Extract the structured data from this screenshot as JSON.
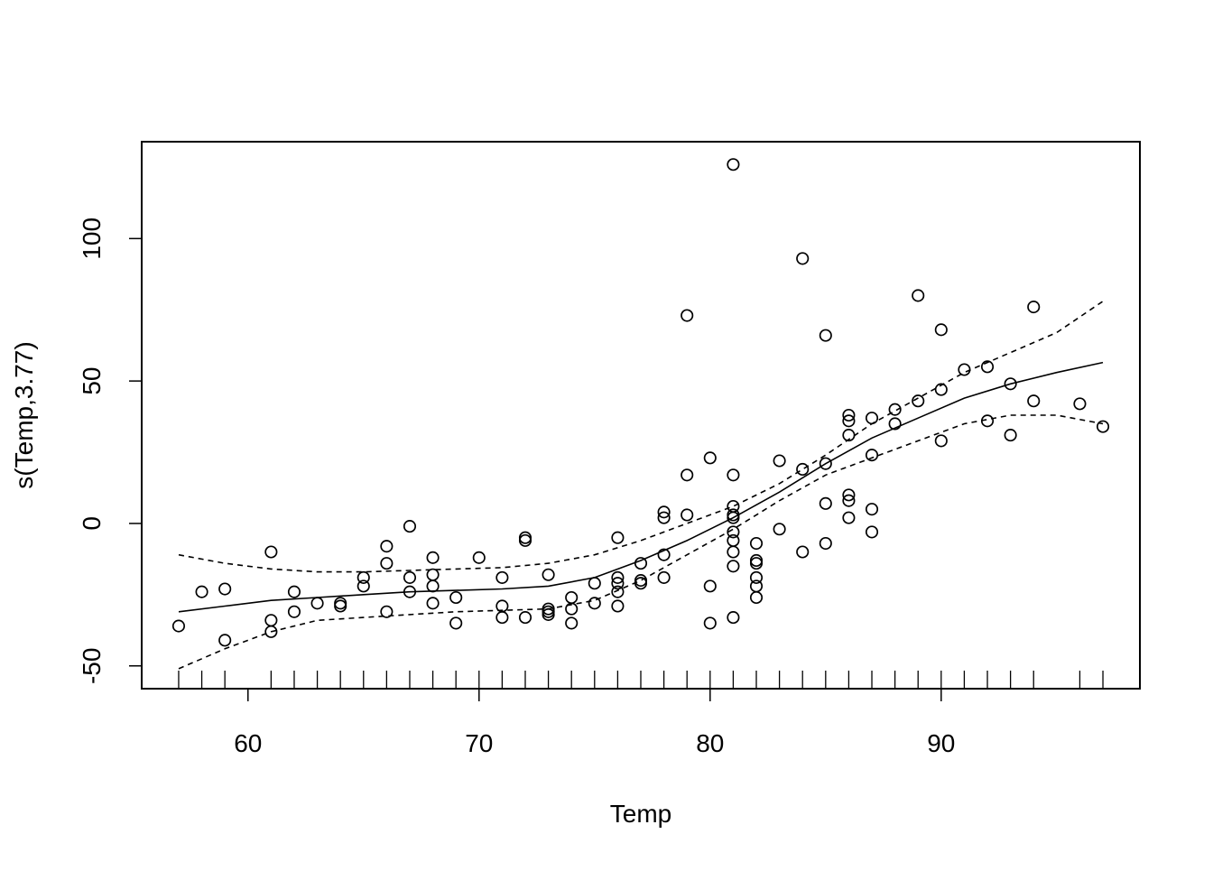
{
  "chart_data": {
    "type": "scatter",
    "title": "",
    "xlabel": "Temp",
    "ylabel": "s(Temp,3.77)",
    "xlim": [
      55.4,
      98.6
    ],
    "ylim": [
      -58.0,
      134.0
    ],
    "x_ticks": [
      60,
      70,
      80,
      90
    ],
    "y_ticks": [
      -50,
      0,
      50,
      100
    ],
    "x_tick_labels": [
      "60",
      "70",
      "80",
      "90"
    ],
    "y_tick_labels": [
      "-50",
      "0",
      "50",
      "100"
    ],
    "grid": false,
    "legend": "none",
    "rug_x": [
      57,
      58,
      59,
      61,
      62,
      63,
      64,
      65,
      66,
      67,
      68,
      69,
      70,
      71,
      72,
      73,
      74,
      75,
      76,
      77,
      78,
      79,
      80,
      81,
      82,
      83,
      84,
      85,
      86,
      87,
      88,
      89,
      90,
      91,
      92,
      93,
      94,
      96,
      97
    ],
    "points": [
      [
        57,
        -36
      ],
      [
        58,
        -24
      ],
      [
        59,
        -23
      ],
      [
        59,
        -41
      ],
      [
        61,
        -10
      ],
      [
        61,
        -34
      ],
      [
        61,
        -38
      ],
      [
        62,
        -24
      ],
      [
        62,
        -31
      ],
      [
        63,
        -28
      ],
      [
        64,
        -28
      ],
      [
        64,
        -29
      ],
      [
        65,
        -19
      ],
      [
        65,
        -22
      ],
      [
        66,
        -8
      ],
      [
        66,
        -14
      ],
      [
        66,
        -31
      ],
      [
        67,
        -1
      ],
      [
        67,
        -19
      ],
      [
        67,
        -24
      ],
      [
        68,
        -12
      ],
      [
        68,
        -18
      ],
      [
        68,
        -22
      ],
      [
        68,
        -28
      ],
      [
        69,
        -26
      ],
      [
        69,
        -35
      ],
      [
        70,
        -12
      ],
      [
        71,
        -19
      ],
      [
        71,
        -29
      ],
      [
        71,
        -33
      ],
      [
        72,
        -5
      ],
      [
        72,
        -6
      ],
      [
        72,
        -33
      ],
      [
        73,
        -18
      ],
      [
        73,
        -30
      ],
      [
        73,
        -31
      ],
      [
        73,
        -32
      ],
      [
        74,
        -26
      ],
      [
        74,
        -30
      ],
      [
        74,
        -35
      ],
      [
        75,
        -21
      ],
      [
        75,
        -28
      ],
      [
        76,
        -5
      ],
      [
        76,
        -19
      ],
      [
        76,
        -21
      ],
      [
        76,
        -24
      ],
      [
        76,
        -29
      ],
      [
        77,
        -14
      ],
      [
        77,
        -20
      ],
      [
        77,
        -21
      ],
      [
        78,
        4
      ],
      [
        78,
        2
      ],
      [
        78,
        -11
      ],
      [
        78,
        -19
      ],
      [
        79,
        73
      ],
      [
        79,
        17
      ],
      [
        79,
        3
      ],
      [
        80,
        23
      ],
      [
        80,
        -22
      ],
      [
        80,
        -35
      ],
      [
        81,
        126
      ],
      [
        81,
        17
      ],
      [
        81,
        6
      ],
      [
        81,
        3
      ],
      [
        81,
        2
      ],
      [
        81,
        -3
      ],
      [
        81,
        -6
      ],
      [
        81,
        -10
      ],
      [
        81,
        -15
      ],
      [
        81,
        -33
      ],
      [
        82,
        -7
      ],
      [
        82,
        -13
      ],
      [
        82,
        -14
      ],
      [
        82,
        -19
      ],
      [
        82,
        -22
      ],
      [
        82,
        -26
      ],
      [
        83,
        22
      ],
      [
        83,
        -2
      ],
      [
        84,
        93
      ],
      [
        84,
        19
      ],
      [
        84,
        -10
      ],
      [
        85,
        66
      ],
      [
        85,
        21
      ],
      [
        85,
        7
      ],
      [
        85,
        -7
      ],
      [
        86,
        38
      ],
      [
        86,
        36
      ],
      [
        86,
        31
      ],
      [
        86,
        10
      ],
      [
        86,
        8
      ],
      [
        86,
        2
      ],
      [
        87,
        37
      ],
      [
        87,
        24
      ],
      [
        87,
        5
      ],
      [
        87,
        -3
      ],
      [
        88,
        40
      ],
      [
        88,
        35
      ],
      [
        89,
        80
      ],
      [
        89,
        43
      ],
      [
        90,
        68
      ],
      [
        90,
        47
      ],
      [
        90,
        29
      ],
      [
        91,
        54
      ],
      [
        92,
        55
      ],
      [
        92,
        36
      ],
      [
        93,
        49
      ],
      [
        93,
        31
      ],
      [
        94,
        76
      ],
      [
        94,
        43
      ],
      [
        96,
        42
      ],
      [
        97,
        34
      ]
    ],
    "series": [
      {
        "name": "",
        "style": "solid",
        "x": [
          57,
          59,
          61,
          63,
          65,
          67,
          69,
          71,
          73,
          75,
          77,
          79,
          81,
          83,
          85,
          87,
          89,
          91,
          93,
          95,
          97
        ],
        "y": [
          -31,
          -29,
          -27,
          -26,
          -25,
          -24,
          -23.5,
          -23,
          -22,
          -19,
          -13,
          -6,
          2,
          11,
          21,
          30,
          37,
          44,
          49,
          53,
          56.5
        ]
      },
      {
        "name": "",
        "style": "dashed",
        "x": [
          57,
          59,
          61,
          63,
          65,
          67,
          69,
          71,
          73,
          75,
          77,
          79,
          81,
          83,
          85,
          87,
          89,
          91,
          93,
          95,
          97
        ],
        "y": [
          -11,
          -14,
          -16,
          -17,
          -17,
          -16.5,
          -16,
          -15.5,
          -14,
          -11,
          -6,
          0,
          6,
          14,
          24,
          35,
          44,
          53,
          60,
          67,
          78
        ]
      },
      {
        "name": "",
        "style": "dashed",
        "x": [
          57,
          59,
          61,
          63,
          65,
          67,
          69,
          71,
          73,
          75,
          77,
          79,
          81,
          83,
          85,
          87,
          89,
          91,
          93,
          95,
          97
        ],
        "y": [
          -51,
          -44,
          -38,
          -34,
          -33,
          -32,
          -31,
          -30.5,
          -30,
          -27,
          -20,
          -11,
          -2,
          8,
          17,
          23,
          29,
          35,
          38,
          38,
          35
        ]
      }
    ]
  }
}
